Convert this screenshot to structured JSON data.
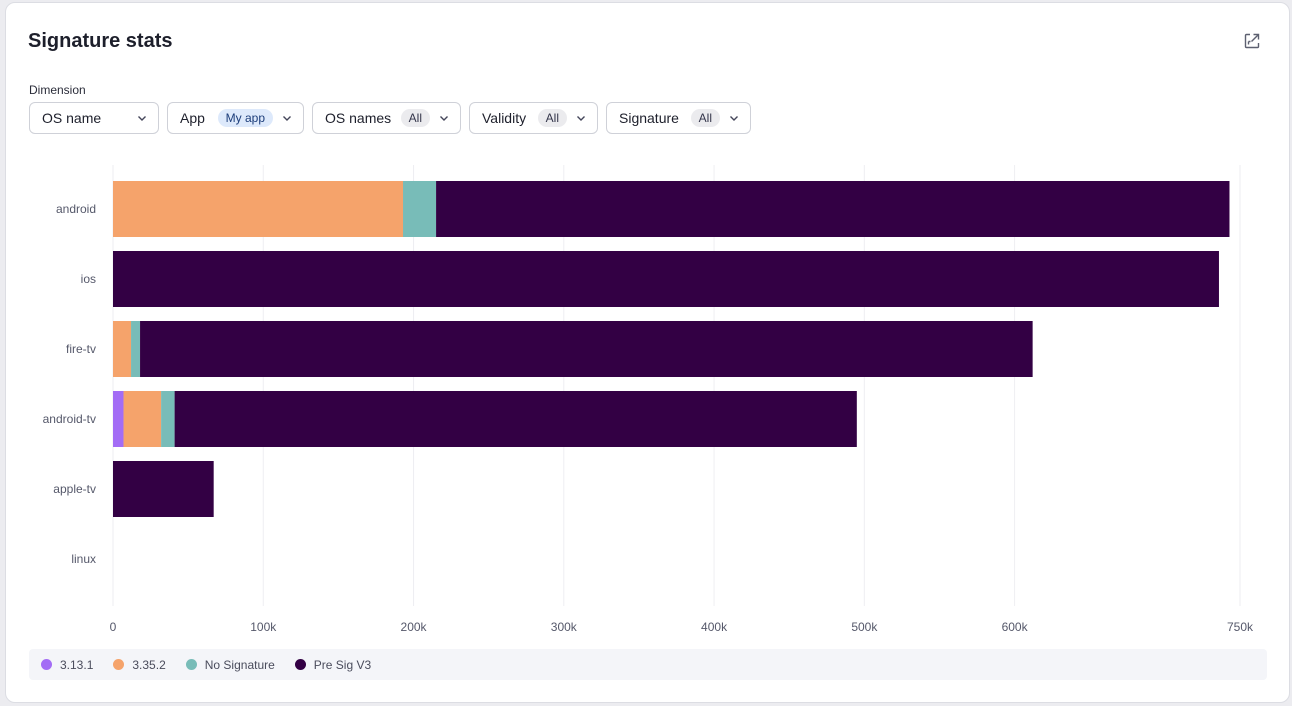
{
  "panel": {
    "title": "Signature stats",
    "export_icon": "external-open-icon"
  },
  "controls": {
    "dimension_label": "Dimension",
    "dimension_value": "OS name",
    "app_label": "App",
    "app_value": "My app",
    "os_names_label": "OS names",
    "os_names_value": "All",
    "validity_label": "Validity",
    "validity_value": "All",
    "signature_label": "Signature",
    "signature_value": "All"
  },
  "chart_data": {
    "type": "bar",
    "orientation": "horizontal",
    "stacked": true,
    "title": "",
    "xlabel": "",
    "ylabel": "",
    "categories": [
      "android",
      "ios",
      "fire-tv",
      "android-tv",
      "apple-tv",
      "linux"
    ],
    "series": [
      {
        "name": "3.13.1",
        "color": "#a36cf5",
        "values": [
          0,
          0,
          0,
          7000,
          0,
          0
        ]
      },
      {
        "name": "3.35.2",
        "color": "#f5a36b",
        "values": [
          193000,
          0,
          12000,
          25000,
          0,
          0
        ]
      },
      {
        "name": "No Signature",
        "color": "#78bcb8",
        "values": [
          22000,
          0,
          6000,
          9000,
          0,
          0
        ]
      },
      {
        "name": "Pre Sig V3",
        "color": "#330044",
        "values": [
          528000,
          736000,
          594000,
          454000,
          67000,
          0
        ]
      }
    ],
    "xlim": [
      0,
      750000
    ],
    "xticks": [
      0,
      100000,
      200000,
      300000,
      400000,
      500000,
      600000,
      750000
    ],
    "xtick_labels": [
      "0",
      "100k",
      "200k",
      "300k",
      "400k",
      "500k",
      "600k",
      "750k"
    ],
    "grid": true,
    "legend_position": "bottom"
  }
}
